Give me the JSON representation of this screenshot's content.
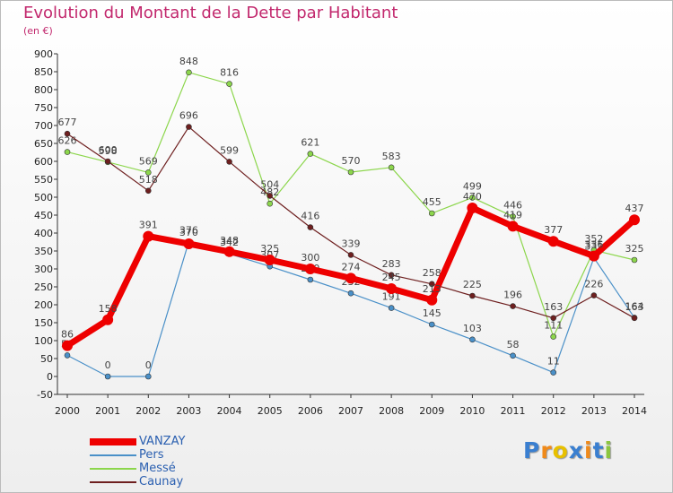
{
  "title": "Evolution du Montant de la Dette par Habitant",
  "subtitle": "(en €)",
  "logo": "Proxiti",
  "chart_data": {
    "type": "line",
    "title": "Evolution du Montant de la Dette par Habitant",
    "subtitle": "(en €)",
    "xlabel": "",
    "ylabel": "",
    "x": [
      "2000",
      "2001",
      "2002",
      "2003",
      "2004",
      "2005",
      "2006",
      "2007",
      "2008",
      "2009",
      "2010",
      "2011",
      "2012",
      "2013",
      "2014"
    ],
    "yticks": [
      "-50",
      "0",
      "50",
      "100",
      "150",
      "200",
      "250",
      "300",
      "350",
      "400",
      "450",
      "500",
      "550",
      "600",
      "650",
      "700",
      "750",
      "800",
      "850",
      "900"
    ],
    "ylim": [
      -50,
      900
    ],
    "grid": false,
    "legend_position": "bottom-left",
    "series": [
      {
        "name": "Pers",
        "color": "#4a90c8",
        "values": [
          59,
          0,
          0,
          376,
          342,
          307,
          270,
          232,
          191,
          145,
          103,
          58,
          11,
          331,
          164
        ],
        "labels": [
          "59",
          "0",
          "0",
          "376",
          "342",
          "307",
          "270",
          "232",
          "191",
          "145",
          "103",
          "58",
          "11",
          "331",
          "164"
        ]
      },
      {
        "name": "Messé",
        "color": "#8cd64c",
        "values": [
          626,
          598,
          569,
          848,
          816,
          482,
          621,
          570,
          583,
          455,
          499,
          446,
          111,
          352,
          325
        ],
        "labels": [
          "626",
          "598",
          "569",
          "848",
          "816",
          "482",
          "621",
          "570",
          "583",
          "455",
          "499",
          "446",
          "111",
          "352",
          "325"
        ]
      },
      {
        "name": "Caunay",
        "color": "#6e1f1f",
        "values": [
          677,
          600,
          518,
          696,
          599,
          504,
          416,
          339,
          283,
          258,
          225,
          196,
          163,
          226,
          163
        ],
        "labels": [
          "677",
          "600",
          "518",
          "696",
          "599",
          "504",
          "416",
          "339",
          "283",
          "258",
          "225",
          "196",
          "163",
          "226",
          "163"
        ]
      },
      {
        "name": "VANZAY",
        "color": "#ee0000",
        "values": [
          86,
          158,
          391,
          370,
          348,
          325,
          300,
          274,
          245,
          213,
          470,
          419,
          377,
          336,
          437
        ],
        "labels": [
          "86",
          "158",
          "391",
          "370",
          "348",
          "325",
          "300",
          "274",
          "245",
          "213",
          "470",
          "419",
          "377",
          "336",
          "437"
        ]
      }
    ]
  },
  "legend": [
    {
      "name": "VANZAY",
      "color": "#ee0000"
    },
    {
      "name": "Pers",
      "color": "#4a90c8"
    },
    {
      "name": "Messé",
      "color": "#8cd64c"
    },
    {
      "name": "Caunay",
      "color": "#6e1f1f"
    }
  ]
}
